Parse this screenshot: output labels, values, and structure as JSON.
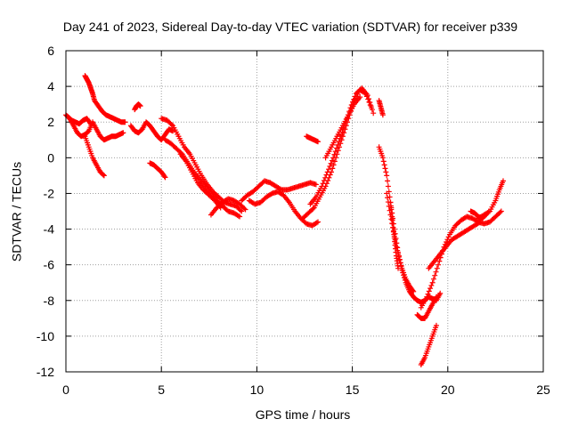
{
  "chart_data": {
    "type": "scatter",
    "title": "Day 241 of 2023, Sidereal Day-to-day VTEC variation (SDTVAR) for receiver p339",
    "xlabel": "GPS time / hours",
    "ylabel": "SDTVAR / TECUs",
    "xlim": [
      0,
      25
    ],
    "ylim": [
      -12,
      6
    ],
    "xticks": [
      0,
      5,
      10,
      15,
      20,
      25
    ],
    "yticks": [
      -12,
      -10,
      -8,
      -6,
      -4,
      -2,
      0,
      2,
      4,
      6
    ],
    "grid": true,
    "marker": "+",
    "color": "#ff0000",
    "series": [
      {
        "x": [
          0.0,
          0.2,
          0.4,
          0.6,
          0.8,
          1.0,
          1.2,
          1.4,
          1.6,
          1.8,
          2.0,
          2.2,
          2.4,
          2.6,
          2.8,
          3.0
        ],
        "y": [
          2.4,
          2.2,
          1.8,
          1.4,
          1.2,
          1.3,
          1.5,
          2.0,
          1.6,
          1.2,
          1.0,
          1.1,
          1.2,
          1.2,
          1.3,
          1.4
        ]
      },
      {
        "x": [
          0.1,
          0.3,
          0.5,
          0.7,
          0.9,
          1.1,
          1.3
        ],
        "y": [
          2.3,
          2.1,
          2.0,
          1.9,
          2.1,
          2.2,
          1.9
        ]
      },
      {
        "x": [
          1.0,
          1.2,
          1.4,
          1.6,
          1.8,
          2.0
        ],
        "y": [
          1.2,
          0.6,
          0.0,
          -0.4,
          -0.8,
          -1.0
        ]
      },
      {
        "x": [
          1.0,
          1.1,
          1.2,
          1.3,
          1.4,
          1.5,
          1.7,
          1.9,
          2.1,
          2.3,
          2.5,
          2.7,
          2.9,
          3.1
        ],
        "y": [
          4.6,
          4.4,
          4.2,
          3.9,
          3.6,
          3.2,
          2.9,
          2.6,
          2.4,
          2.3,
          2.2,
          2.1,
          2.0,
          2.0
        ]
      },
      {
        "x": [
          3.4,
          3.6,
          3.8,
          4.0,
          4.2,
          4.4,
          4.6,
          4.8,
          5.0,
          5.2,
          5.4,
          5.6
        ],
        "y": [
          1.8,
          1.5,
          1.4,
          1.6,
          2.0,
          1.8,
          1.5,
          1.2,
          1.0,
          1.3,
          1.6,
          1.5
        ]
      },
      {
        "x": [
          3.6,
          3.7,
          3.8,
          3.9
        ],
        "y": [
          2.7,
          2.9,
          3.0,
          2.9
        ]
      },
      {
        "x": [
          4.4,
          4.6,
          4.8,
          5.0,
          5.2
        ],
        "y": [
          -0.3,
          -0.4,
          -0.6,
          -0.8,
          -1.1
        ]
      },
      {
        "x": [
          5.0,
          5.3,
          5.6,
          5.9,
          6.2,
          6.5,
          6.8,
          7.1,
          7.4,
          7.7,
          8.0,
          8.3,
          8.6,
          8.9,
          9.2
        ],
        "y": [
          2.2,
          2.1,
          1.8,
          1.2,
          0.6,
          0.2,
          -0.4,
          -1.0,
          -1.5,
          -1.9,
          -2.2,
          -2.5,
          -2.6,
          -2.7,
          -3.0
        ]
      },
      {
        "x": [
          5.2,
          5.5,
          5.8,
          6.1,
          6.4,
          6.7,
          7.0,
          7.3,
          7.6,
          7.9,
          8.2,
          8.5,
          8.8,
          9.1
        ],
        "y": [
          1.0,
          0.8,
          0.5,
          0.2,
          -0.3,
          -0.8,
          -1.2,
          -1.6,
          -2.0,
          -2.4,
          -2.7,
          -3.0,
          -3.1,
          -3.3
        ]
      },
      {
        "x": [
          6.0,
          6.3,
          6.6,
          6.9,
          7.2,
          7.5,
          7.8,
          8.1
        ],
        "y": [
          0.2,
          -0.2,
          -0.8,
          -1.4,
          -1.8,
          -2.1,
          -2.4,
          -2.8
        ]
      },
      {
        "x": [
          7.6,
          7.9,
          8.2,
          8.5,
          8.8,
          9.1,
          9.4
        ],
        "y": [
          -3.2,
          -2.8,
          -2.5,
          -2.3,
          -2.4,
          -2.6,
          -2.9
        ]
      },
      {
        "x": [
          9.2,
          9.5,
          9.8,
          10.1,
          10.4,
          10.7,
          11.0,
          11.3,
          11.6,
          11.9,
          12.2,
          12.5,
          12.8,
          13.1
        ],
        "y": [
          -2.4,
          -2.1,
          -1.9,
          -1.6,
          -1.3,
          -1.4,
          -1.6,
          -1.8,
          -1.8,
          -1.7,
          -1.6,
          -1.5,
          -1.4,
          -1.5
        ]
      },
      {
        "x": [
          9.6,
          9.9,
          10.2,
          10.5,
          10.8,
          11.1,
          11.4,
          11.7,
          12.0,
          12.3,
          12.6,
          12.9,
          13.2
        ],
        "y": [
          -2.4,
          -2.6,
          -2.5,
          -2.2,
          -2.0,
          -1.9,
          -2.1,
          -2.5,
          -3.0,
          -3.4,
          -3.7,
          -3.8,
          -3.6
        ]
      },
      {
        "x": [
          12.4,
          12.7,
          13.0,
          13.3,
          13.6,
          13.9,
          14.2,
          14.5,
          14.8,
          15.1,
          15.4,
          15.7,
          16.0
        ],
        "y": [
          -3.4,
          -3.1,
          -2.8,
          -2.2,
          -1.6,
          -0.8,
          0.2,
          1.2,
          2.2,
          3.2,
          3.8,
          3.6,
          2.8
        ]
      },
      {
        "x": [
          12.8,
          13.1,
          13.4,
          13.7,
          14.0,
          14.3,
          14.6,
          14.9,
          15.2,
          15.5,
          15.8,
          16.1
        ],
        "y": [
          -2.6,
          -2.2,
          -1.6,
          -0.8,
          0.0,
          0.9,
          1.8,
          2.8,
          3.6,
          3.9,
          3.5,
          2.5
        ]
      },
      {
        "x": [
          13.6,
          13.9,
          14.2,
          14.5,
          14.8,
          15.1,
          15.4
        ],
        "y": [
          0.0,
          0.6,
          1.2,
          1.8,
          2.4,
          3.0,
          3.4
        ]
      },
      {
        "x": [
          12.6,
          12.8,
          13.0,
          13.2
        ],
        "y": [
          1.2,
          1.1,
          1.0,
          0.9
        ]
      },
      {
        "x": [
          16.4,
          16.5,
          16.6
        ],
        "y": [
          3.2,
          2.8,
          2.4
        ]
      },
      {
        "x": [
          16.4,
          16.6,
          16.8,
          17.0,
          17.2,
          17.4,
          17.6,
          17.8,
          18.0,
          18.2,
          18.4,
          18.6,
          18.8,
          19.0,
          19.2,
          19.4,
          19.6
        ],
        "y": [
          0.6,
          0.0,
          -1.0,
          -2.5,
          -4.0,
          -5.3,
          -6.3,
          -7.0,
          -7.5,
          -7.8,
          -8.0,
          -8.1,
          -8.0,
          -7.8,
          -7.9,
          -8.0,
          -7.6
        ]
      },
      {
        "x": [
          16.8,
          17.0,
          17.2,
          17.4,
          17.6,
          17.8,
          18.0,
          18.2
        ],
        "y": [
          -2.0,
          -3.2,
          -4.4,
          -5.4,
          -6.2,
          -6.8,
          -7.2,
          -7.5
        ]
      },
      {
        "x": [
          17.0,
          17.1,
          17.2,
          17.3,
          17.4
        ],
        "y": [
          -2.5,
          -3.5,
          -4.5,
          -5.5,
          -6.2
        ]
      },
      {
        "x": [
          18.4,
          18.6,
          18.8,
          19.0,
          19.2,
          19.4
        ],
        "y": [
          -8.8,
          -9.0,
          -9.0,
          -8.6,
          -8.2,
          -7.8
        ]
      },
      {
        "x": [
          18.6,
          18.8,
          19.0,
          19.2,
          19.4
        ],
        "y": [
          -11.6,
          -11.2,
          -10.6,
          -10.0,
          -9.4
        ]
      },
      {
        "x": [
          18.6,
          18.9,
          19.2,
          19.5,
          19.8,
          20.1,
          20.4,
          20.7,
          21.0,
          21.3,
          21.6,
          21.9,
          22.2,
          22.5,
          22.8
        ],
        "y": [
          -8.4,
          -7.8,
          -7.0,
          -6.0,
          -5.0,
          -4.3,
          -3.8,
          -3.5,
          -3.3,
          -3.4,
          -3.6,
          -3.7,
          -3.6,
          -3.3,
          -3.0
        ]
      },
      {
        "x": [
          19.0,
          19.3,
          19.6,
          19.9,
          20.2,
          20.5,
          20.8,
          21.1,
          21.4,
          21.7
        ],
        "y": [
          -6.2,
          -5.8,
          -5.4,
          -5.0,
          -4.6,
          -4.4,
          -4.2,
          -4.0,
          -3.8,
          -3.6
        ]
      },
      {
        "x": [
          21.6,
          21.9,
          22.2,
          22.5,
          22.7,
          22.9
        ],
        "y": [
          -3.4,
          -3.2,
          -3.0,
          -2.4,
          -1.8,
          -1.3
        ]
      },
      {
        "x": [
          21.2,
          21.4,
          21.6,
          21.8,
          22.0
        ],
        "y": [
          -3.0,
          -3.1,
          -3.3,
          -3.4,
          -3.2
        ]
      }
    ]
  }
}
